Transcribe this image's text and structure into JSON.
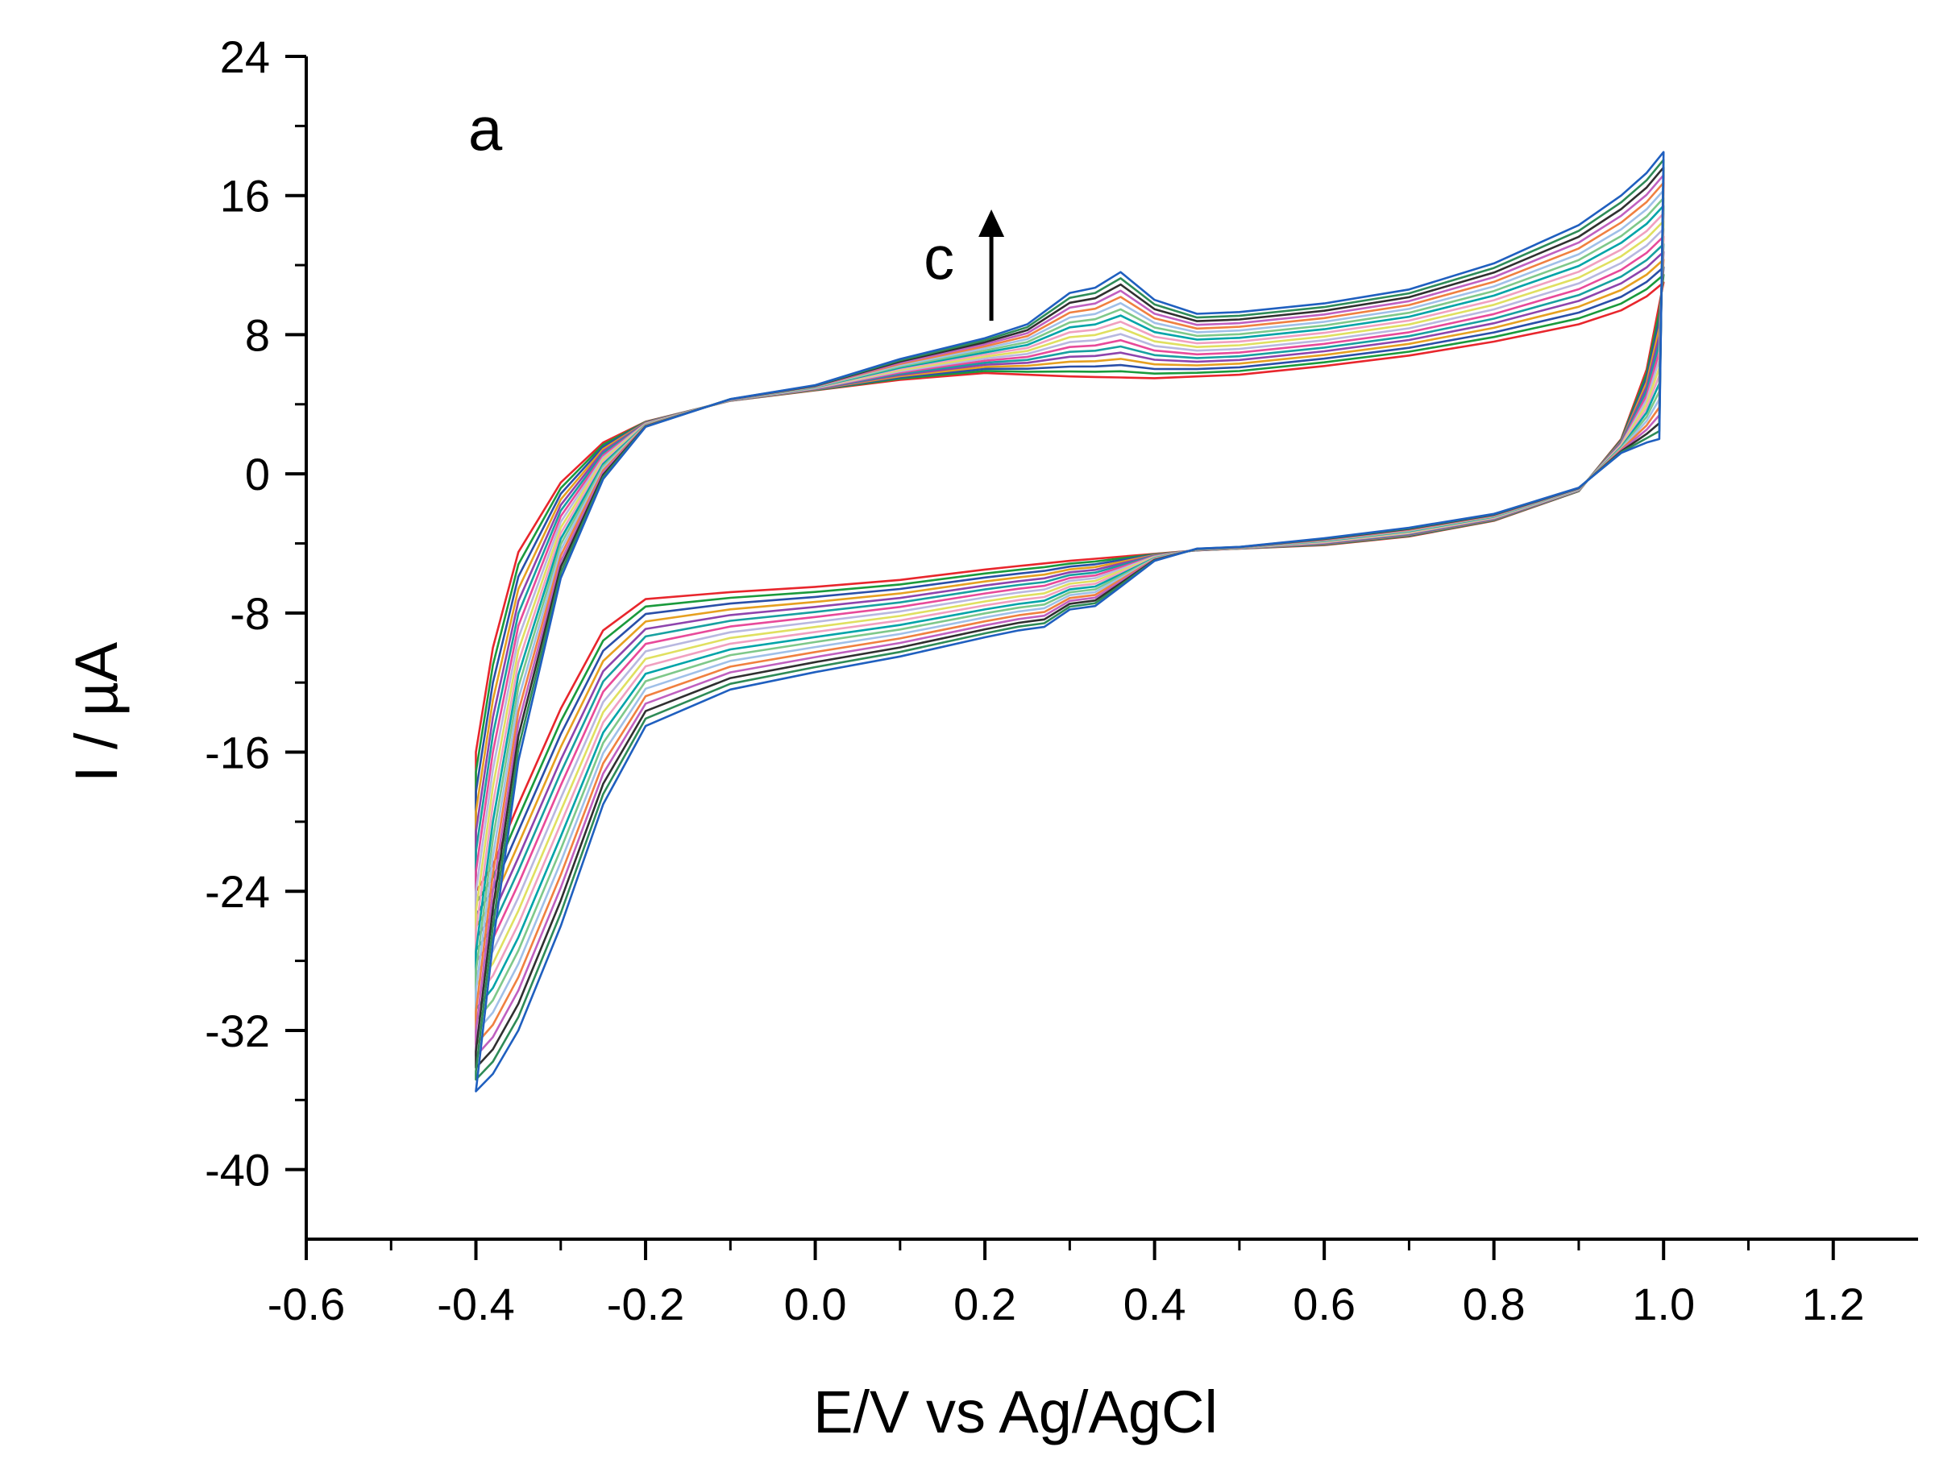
{
  "chart_data": {
    "type": "line",
    "title": "",
    "panel_label": "a",
    "xlabel": "E/V vs Ag/AgCl",
    "ylabel": "I / µA",
    "xlim": [
      -0.6,
      1.3
    ],
    "ylim": [
      -44,
      24
    ],
    "xticks": [
      -0.6,
      -0.4,
      -0.2,
      0.0,
      0.2,
      0.4,
      0.6,
      0.8,
      1.0,
      1.2
    ],
    "xtick_labels": [
      "-0.6",
      "-0.4",
      "-0.2",
      "0.0",
      "0.2",
      "0.4",
      "0.6",
      "0.8",
      "1.0",
      "1.2"
    ],
    "yticks": [
      24,
      16,
      8,
      0,
      -8,
      -16,
      -24,
      -32,
      -40
    ],
    "ytick_labels": [
      "24",
      "16",
      "8",
      "0",
      "-8",
      "-16",
      "-24",
      "-32",
      "-40"
    ],
    "grid": false,
    "annotation": {
      "text": "c",
      "x": 0.2,
      "y": 12.5,
      "arrow_from_y": 8.8,
      "arrow_to_y": 15.2,
      "direction": "up"
    },
    "series_colors": [
      "#e8262c",
      "#1a9a3c",
      "#2a4fa8",
      "#e6a020",
      "#8e44ad",
      "#17a0a0",
      "#e84a9a",
      "#b8b8e0",
      "#e0e060",
      "#f0a0c0",
      "#00a4a8",
      "#7ec88a",
      "#a0c0e8",
      "#f08040",
      "#c060c0",
      "#303030",
      "#2e8b57",
      "#1f5fbf"
    ],
    "envelope": {
      "first_cycle": {
        "anodic": {
          "x": [
            -0.4,
            -0.38,
            -0.35,
            -0.3,
            -0.25,
            -0.2,
            -0.1,
            0.0,
            0.1,
            0.2,
            0.3,
            0.4,
            0.5,
            0.6,
            0.7,
            0.8,
            0.9,
            0.95,
            0.98,
            1.0
          ],
          "y": [
            -16.0,
            -10.0,
            -4.5,
            -0.5,
            1.8,
            3.0,
            4.2,
            4.8,
            5.4,
            5.8,
            5.6,
            5.5,
            5.7,
            6.2,
            6.8,
            7.6,
            8.6,
            9.4,
            10.2,
            11.0
          ]
        },
        "cathodic": {
          "x": [
            1.0,
            0.98,
            0.95,
            0.9,
            0.8,
            0.7,
            0.6,
            0.5,
            0.45,
            0.4,
            0.3,
            0.2,
            0.1,
            0.0,
            -0.1,
            -0.2,
            -0.25,
            -0.3,
            -0.35,
            -0.38,
            -0.4
          ],
          "y": [
            11.0,
            6.0,
            2.0,
            -1.0,
            -2.7,
            -3.6,
            -4.1,
            -4.3,
            -4.4,
            -4.6,
            -5.0,
            -5.5,
            -6.1,
            -6.5,
            -6.8,
            -7.2,
            -9.0,
            -13.5,
            -19.0,
            -22.5,
            -24.0
          ]
        }
      },
      "last_cycle": {
        "anodic": {
          "x": [
            -0.4,
            -0.38,
            -0.35,
            -0.3,
            -0.25,
            -0.2,
            -0.1,
            0.0,
            0.1,
            0.2,
            0.25,
            0.3,
            0.33,
            0.36,
            0.4,
            0.45,
            0.5,
            0.6,
            0.7,
            0.8,
            0.9,
            0.95,
            0.98,
            1.0
          ],
          "y": [
            -35.5,
            -27.0,
            -16.5,
            -6.0,
            -0.3,
            2.7,
            4.3,
            5.1,
            6.6,
            7.8,
            8.6,
            10.4,
            10.7,
            11.6,
            10.0,
            9.2,
            9.3,
            9.8,
            10.6,
            12.1,
            14.3,
            16.0,
            17.3,
            18.5
          ]
        },
        "cathodic": {
          "x": [
            1.0,
            0.995,
            0.98,
            0.95,
            0.9,
            0.8,
            0.7,
            0.6,
            0.5,
            0.45,
            0.4,
            0.36,
            0.33,
            0.3,
            0.27,
            0.24,
            0.2,
            0.1,
            0.0,
            -0.1,
            -0.2,
            -0.25,
            -0.3,
            -0.35,
            -0.38,
            -0.4
          ],
          "y": [
            18.5,
            2.0,
            1.8,
            1.2,
            -0.8,
            -2.3,
            -3.1,
            -3.7,
            -4.2,
            -4.3,
            -5.0,
            -6.5,
            -7.6,
            -7.8,
            -8.8,
            -9.0,
            -9.4,
            -10.5,
            -11.4,
            -12.4,
            -14.5,
            -19.0,
            -26.0,
            -32.0,
            -34.5,
            -35.5
          ]
        }
      }
    }
  }
}
